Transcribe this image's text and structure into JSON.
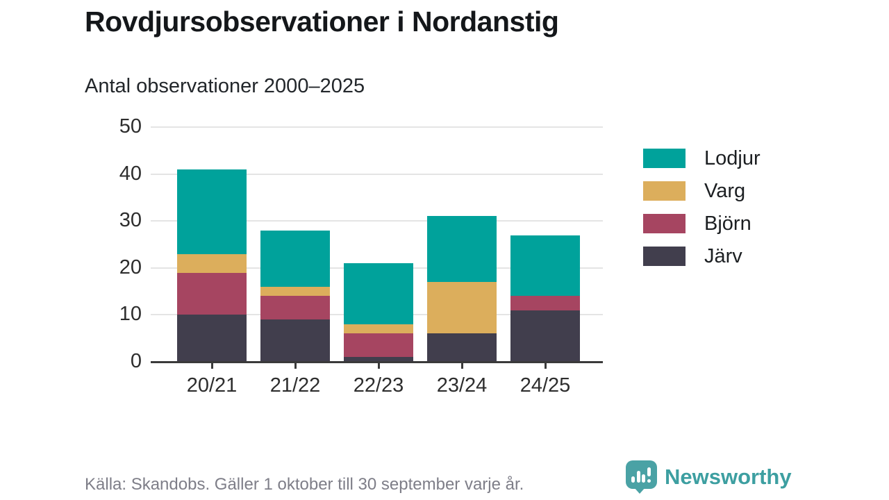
{
  "title": "Rovdjursobservationer i Nordanstig",
  "subtitle": "Antal observationer 2000–2025",
  "footer": {
    "source": "Källa: Skandobs. Gäller 1 oktober till 30 september varje år."
  },
  "branding": {
    "name": "Newsworthy",
    "color": "#3d9fa1"
  },
  "chart_data": {
    "type": "bar",
    "stacked": true,
    "title": "Rovdjursobservationer i Nordanstig",
    "subtitle": "Antal observationer 2000–2025",
    "categories": [
      "20/21",
      "21/22",
      "22/23",
      "23/24",
      "24/25"
    ],
    "series": [
      {
        "name": "Järv",
        "color": "#413e4d",
        "values": [
          10,
          9,
          1,
          6,
          11
        ]
      },
      {
        "name": "Björn",
        "color": "#a64561",
        "values": [
          9,
          5,
          5,
          0,
          3
        ]
      },
      {
        "name": "Varg",
        "color": "#dcae5c",
        "values": [
          4,
          2,
          2,
          11,
          0
        ]
      },
      {
        "name": "Lodjur",
        "color": "#00a29b",
        "values": [
          18,
          12,
          13,
          14,
          13
        ]
      }
    ],
    "totals": [
      41,
      28,
      21,
      31,
      27
    ],
    "legend_order": [
      "Lodjur",
      "Varg",
      "Björn",
      "Järv"
    ],
    "legend_position": "right",
    "xlabel": "",
    "ylabel": "",
    "ylim": [
      0,
      50
    ],
    "yticks": [
      0,
      10,
      20,
      30,
      40,
      50
    ],
    "grid": true,
    "gridline_color": "#e4e4e4",
    "axis_color": "#3a3a3a"
  }
}
